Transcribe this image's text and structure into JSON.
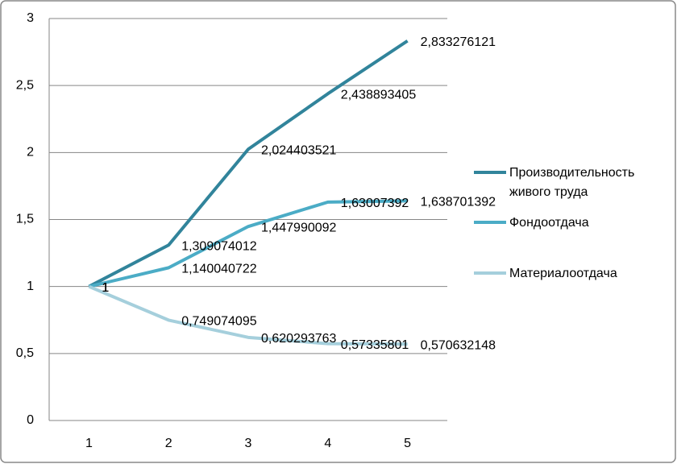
{
  "chart_data": {
    "type": "line",
    "categories": [
      "1",
      "2",
      "3",
      "4",
      "5"
    ],
    "series": [
      {
        "name": "Производительность живого труда",
        "color": "#31849b",
        "values": [
          1,
          1.309074012,
          2.024403521,
          2.438893405,
          2.833276121
        ],
        "value_labels": [
          "1",
          "1,309074012",
          "2,024403521",
          "2,438893405",
          "2,833276121"
        ]
      },
      {
        "name": "Фондоотдача",
        "color": "#4bacc6",
        "values": [
          1,
          1.140040722,
          1.447990092,
          1.63007392,
          1.638701392
        ],
        "value_labels": [
          "1",
          "1,140040722",
          "1,447990092",
          "1,63007392",
          "1,638701392"
        ]
      },
      {
        "name": "Материалоотдача",
        "color": "#a5cfdc",
        "values": [
          1,
          0.749074095,
          0.620293763,
          0.57335801,
          0.570632148
        ],
        "value_labels": [
          "1",
          "0,749074095",
          "0,620293763",
          "0,57335801",
          "0,570632148"
        ]
      }
    ],
    "ylim": [
      0,
      3
    ],
    "yticks": [
      0,
      {
        "value": 0.5,
        "label": "0,5"
      },
      1,
      {
        "value": 1.5,
        "label": "1,5"
      },
      2,
      {
        "value": 2.5,
        "label": "2,5"
      },
      3
    ],
    "grid": true
  }
}
